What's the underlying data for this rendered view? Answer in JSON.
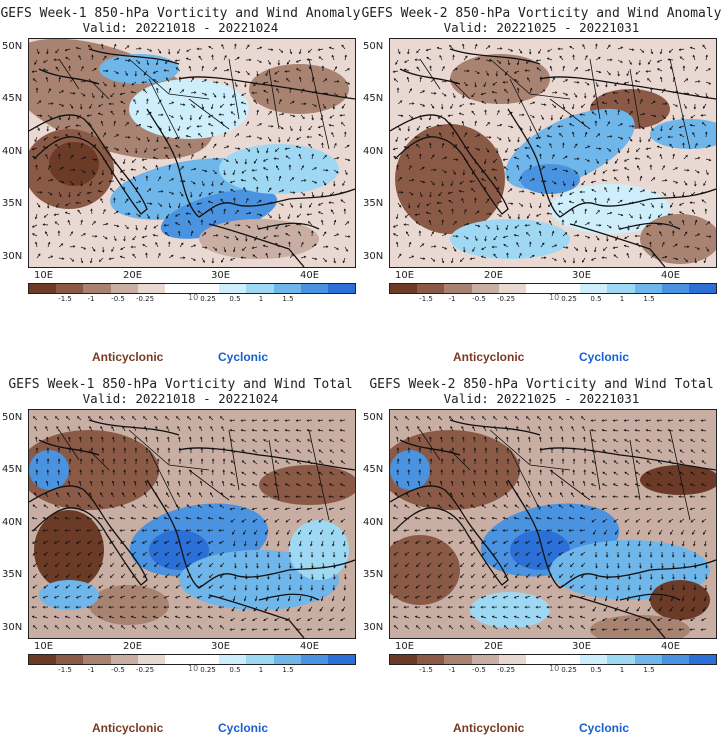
{
  "panels": [
    {
      "title": "GEFS Week-1 850-hPa Vorticity and Wind Anomaly",
      "valid": "Valid: 20221018 - 20221024"
    },
    {
      "title": "GEFS Week-2 850-hPa Vorticity and Wind Anomaly",
      "valid": "Valid: 20221025 - 20221031"
    },
    {
      "title": "GEFS Week-1 850-hPa Vorticity and Wind Total",
      "valid": "Valid: 20221018 - 20221024"
    },
    {
      "title": "GEFS Week-2 850-hPa Vorticity and Wind Total",
      "valid": "Valid: 20221025 - 20221031"
    }
  ],
  "axes": {
    "lat_labels": [
      "50N",
      "45N",
      "40N",
      "35N",
      "30N"
    ],
    "lon_labels": [
      "10E",
      "20E",
      "30E",
      "40E"
    ]
  },
  "colorbar": {
    "ticks": [
      "-1.5",
      "-1",
      "-0.5",
      "-0.25",
      "0.25",
      "0.5",
      "1",
      "1.5"
    ],
    "unit": "10",
    "colors": [
      "#6b3b28",
      "#8a5a46",
      "#a98372",
      "#c9aea3",
      "#e7d8d2",
      "#ffffff",
      "#ffffff",
      "#cdeefa",
      "#9fd8f3",
      "#6fb6ea",
      "#4a93e0",
      "#2b70d6"
    ]
  },
  "legend": {
    "anticyclonic": "Anticyclonic",
    "cyclonic": "Cyclonic"
  },
  "colors": {
    "anticyclonic": "#7a3b24",
    "cyclonic": "#1a5fd0",
    "land_outline": "#111111"
  }
}
